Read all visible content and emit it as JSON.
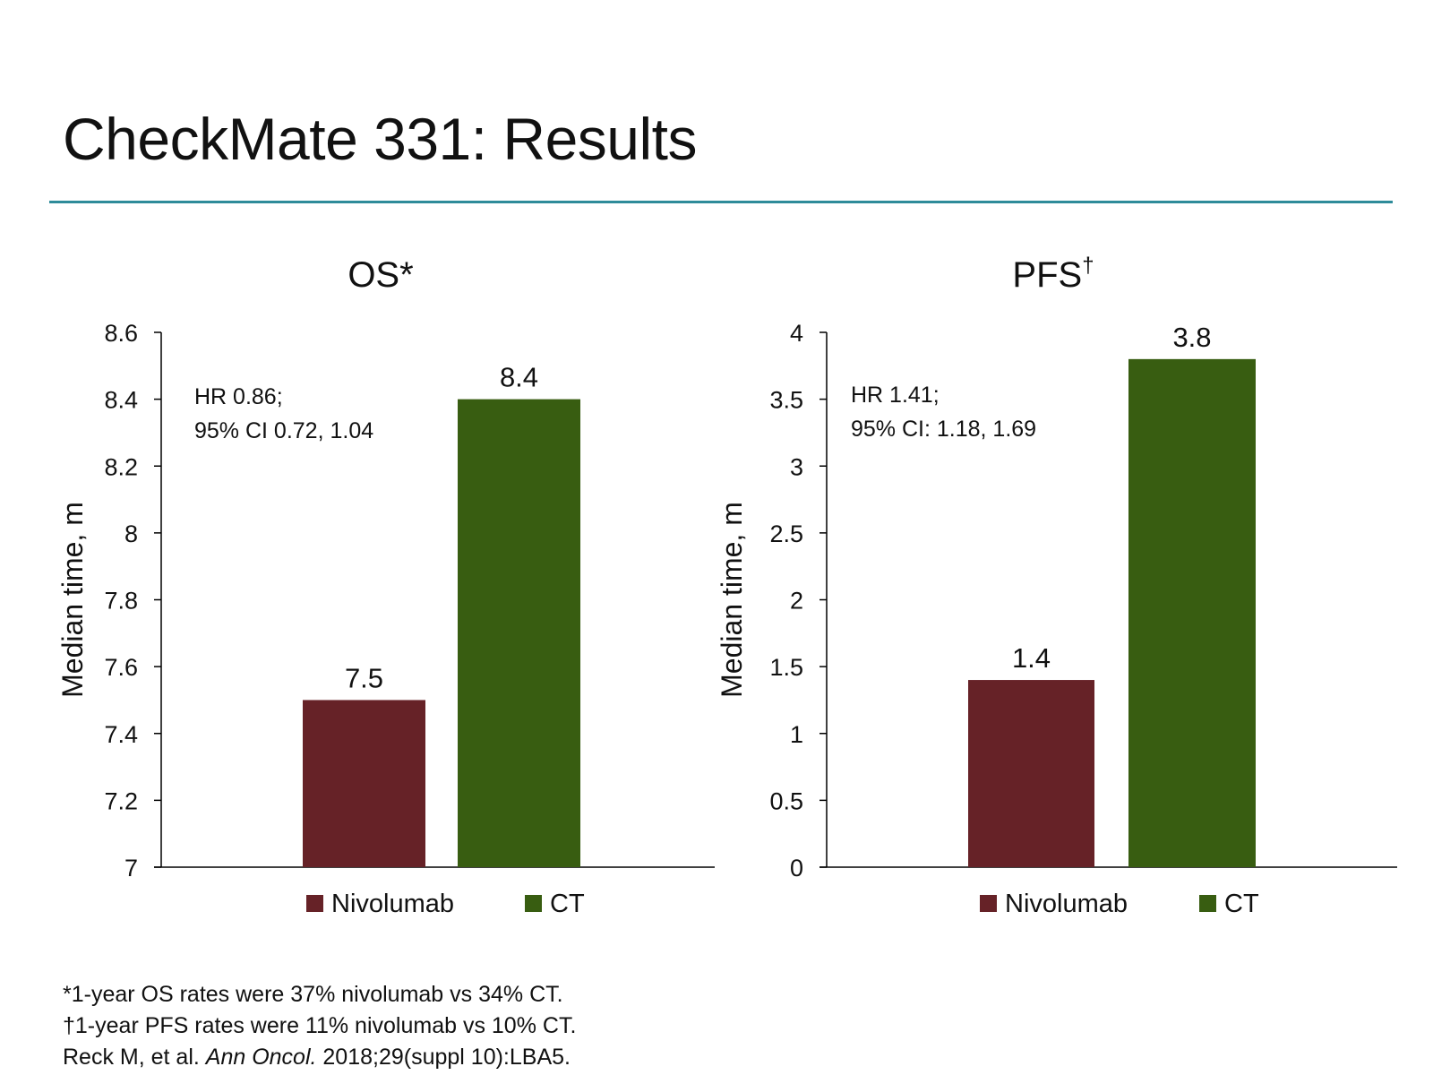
{
  "slide": {
    "title": "CheckMate 331: Results",
    "accent_color": "#2e8b9a"
  },
  "chart_data": [
    {
      "type": "bar",
      "title": "OS*",
      "ylabel": "Median time, m",
      "ylim": [
        7,
        8.6
      ],
      "yticks": [
        7,
        7.2,
        7.4,
        7.6,
        7.8,
        8,
        8.2,
        8.4,
        8.6
      ],
      "ytick_labels": [
        "7",
        "7.2",
        "7.4",
        "7.6",
        "7.8",
        "8",
        "8.2",
        "8.4",
        "8.6"
      ],
      "annotation": [
        "HR 0.86;",
        "95% CI 0.72, 1.04"
      ],
      "series": [
        {
          "name": "Nivolumab",
          "value": 7.5,
          "label": "7.5",
          "color": "#662227"
        },
        {
          "name": "CT",
          "value": 8.4,
          "label": "8.4",
          "color": "#385d11"
        }
      ],
      "legend": "bottom",
      "grid": false
    },
    {
      "type": "bar",
      "title": "PFS",
      "title_sup": "†",
      "ylabel": "Median time, m",
      "ylim": [
        0,
        4
      ],
      "yticks": [
        0,
        0.5,
        1,
        1.5,
        2,
        2.5,
        3,
        3.5,
        4
      ],
      "ytick_labels": [
        "0",
        "0.5",
        "1",
        "1.5",
        "2",
        "2.5",
        "3",
        "3.5",
        "4"
      ],
      "annotation": [
        "HR 1.41;",
        "95% CI: 1.18, 1.69"
      ],
      "series": [
        {
          "name": "Nivolumab",
          "value": 1.4,
          "label": "1.4",
          "color": "#662227"
        },
        {
          "name": "CT",
          "value": 3.8,
          "label": "3.8",
          "color": "#385d11"
        }
      ],
      "legend": "bottom",
      "grid": false
    }
  ],
  "footnotes": {
    "os": "*1-year OS rates were 37% nivolumab vs 34% CT.",
    "pfs": "†1-year PFS rates were 11% nivolumab vs 10% CT.",
    "ref_pre": "Reck M, et al. ",
    "ref_journal": "Ann Oncol.",
    "ref_post": " 2018;29(suppl 10):LBA5."
  }
}
